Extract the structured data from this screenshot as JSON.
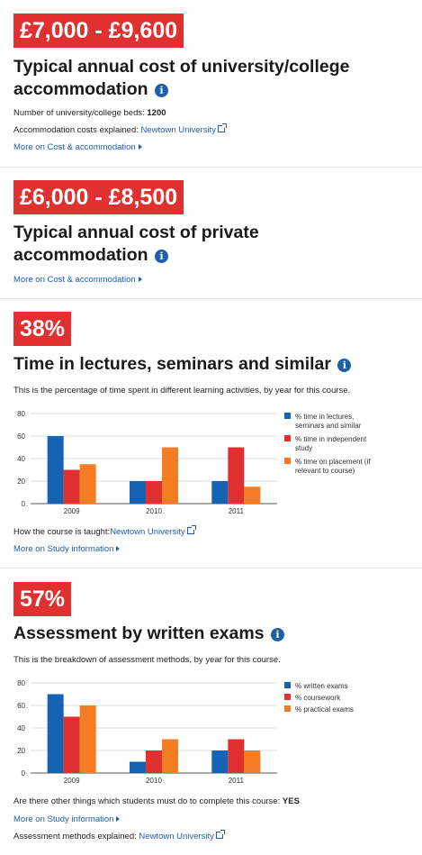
{
  "info_icon_glyph": "i",
  "accent_color": "#e0302f",
  "link_color": "#1d5fa8",
  "card1": {
    "stat": "£7,000 - £9,600",
    "heading_line1": "Typical annual cost of university/college",
    "heading_line2": "accommodation",
    "beds_label": "Number of university/college beds:",
    "beds_value": "1200",
    "costs_label": "Accommodation costs explained:",
    "costs_link": "Newtown University",
    "more_link": "More on Cost & accommodation"
  },
  "card2": {
    "stat": "£6,000 - £8,500",
    "heading_line1": "Typical annual cost of private",
    "heading_line2": "accommodation",
    "more_link": "More on Cost & accommodation"
  },
  "card3": {
    "stat": "38%",
    "heading": "Time in lectures, seminars and similar",
    "description": "This is the percentage of time spent in different learning activities, by year for this course.",
    "taught_label": "How the course is taught:",
    "taught_link": "Newtown University",
    "more_link": "More on Study information"
  },
  "card4": {
    "stat": "57%",
    "heading": "Assessment by written exams",
    "description": "This is the breakdown of assessment methods, by year for this course.",
    "other_label": "Are there other things which students must do to complete this course:",
    "other_value": "YES",
    "more_link": "More on Study information",
    "methods_label": "Assessment methods explained:",
    "methods_link": "Newtown University"
  },
  "chart_data": [
    {
      "type": "bar",
      "categories": [
        "2009",
        "2010",
        "2011"
      ],
      "ylim": [
        0,
        80
      ],
      "yticks": [
        "0",
        "20",
        "40",
        "60",
        "80"
      ],
      "grid": true,
      "legend_position": "right",
      "series": [
        {
          "name": "% time in lectures, seminars and similar",
          "legend_lines": [
            "% time in lectures,",
            "seminars and similar"
          ],
          "color": "#1763b3",
          "values": [
            60,
            20,
            20
          ]
        },
        {
          "name": "% time in independent study",
          "legend_lines": [
            "% time in independent",
            "study"
          ],
          "color": "#e0302f",
          "values": [
            30,
            20,
            50
          ]
        },
        {
          "name": "% time on placement (if relevant to course)",
          "legend_lines": [
            "% time on placement (if",
            "relevant to course)"
          ],
          "color": "#f47c22",
          "values": [
            35,
            50,
            15
          ]
        }
      ]
    },
    {
      "type": "bar",
      "categories": [
        "2009",
        "2010",
        "2011"
      ],
      "ylim": [
        0,
        80
      ],
      "yticks": [
        "0",
        "20",
        "40",
        "60",
        "80"
      ],
      "grid": true,
      "legend_position": "right",
      "series": [
        {
          "name": "% written exams",
          "legend_lines": [
            "% written exams"
          ],
          "color": "#1763b3",
          "values": [
            70,
            10,
            20
          ]
        },
        {
          "name": "% coursework",
          "legend_lines": [
            "% coursework"
          ],
          "color": "#e0302f",
          "values": [
            50,
            20,
            30
          ]
        },
        {
          "name": "% practical exams",
          "legend_lines": [
            "% practical exams"
          ],
          "color": "#f47c22",
          "values": [
            60,
            30,
            20
          ]
        }
      ]
    }
  ]
}
